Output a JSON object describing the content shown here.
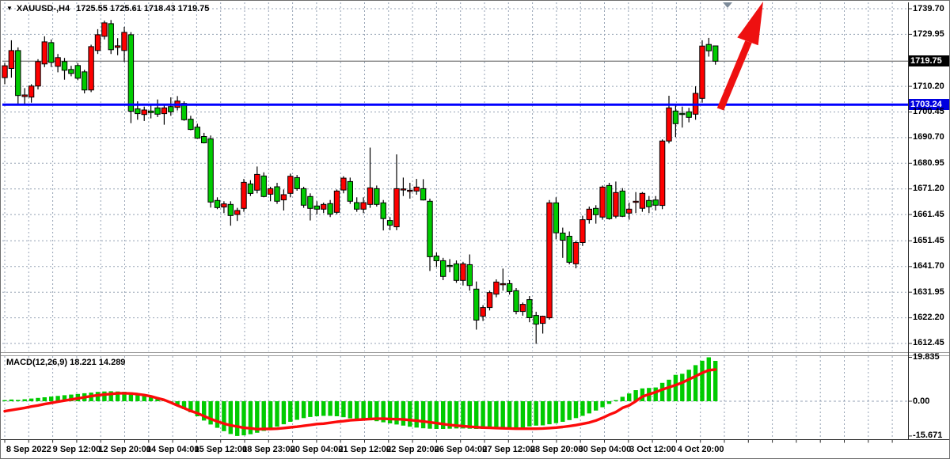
{
  "header": {
    "dropdown_icon": "▼",
    "symbol_period": "XAUUSD-,H4",
    "ohlc_line": "1725.55 1725.61 1718.43 1719.75"
  },
  "macd_header": {
    "text": "MACD(12,26,9) 18.221 14.289",
    "indicator": "MACD",
    "params": "12,26,9",
    "main_value": "18.221",
    "signal_value": "14.289"
  },
  "price_axis": {
    "current_badge": "1719.75",
    "hline_badge": "1703.24",
    "labels": [
      "1739.70",
      "1729.95",
      "1710.20",
      "1700.45",
      "1690.70",
      "1680.95",
      "1671.20",
      "1661.45",
      "1651.45",
      "1641.70",
      "1631.95",
      "1622.20",
      "1612.45"
    ],
    "label_values": [
      1739.7,
      1729.95,
      1710.2,
      1700.45,
      1690.7,
      1680.95,
      1671.2,
      1661.45,
      1651.45,
      1641.7,
      1631.95,
      1622.2,
      1612.45
    ]
  },
  "macd_axis": {
    "labels": [
      "19.835",
      "0.00",
      "-15.671"
    ],
    "label_values": [
      19.835,
      0,
      -15.671
    ]
  },
  "time_axis": {
    "labels": [
      "8 Sep 2022",
      "9 Sep 12:00",
      "12 Sep 20:00",
      "14 Sep 04:00",
      "15 Sep 12:00",
      "18 Sep 23:00",
      "20 Sep 04:00",
      "21 Sep 12:00",
      "22 Sep 20:00",
      "26 Sep 04:00",
      "27 Sep 12:00",
      "28 Sep 20:00",
      "30 Sep 04:00",
      "3 Oct 12:00",
      "4 Oct 20:00"
    ]
  },
  "colors": {
    "bull": "#fe0000",
    "bear": "#00cb00",
    "wick": "#000000",
    "body_border": "#000000",
    "grid": "#95a2b4",
    "price_line": "#808080",
    "hline": "#0000ff",
    "macd_histogram": "#00cb00",
    "macd_signal": "#fc0a0a",
    "macd_zero": "#95a2b4",
    "badge_current_bg": "#000000",
    "badge_hline_bg": "#0000e0",
    "axis_line": "#2b2b2b",
    "separator": "#9a9a9a",
    "arrow": "#ee1010",
    "shift_marker": "#7d8b9a"
  },
  "chart_data": {
    "type": "candlestick",
    "symbol": "XAUUSD",
    "timeframe": "H4",
    "title": "XAUUSD-,H4 1725.55 1725.61 1718.43 1719.75",
    "current_bar": {
      "open": 1725.55,
      "high": 1725.61,
      "low": 1718.43,
      "close": 1719.75
    },
    "horizontal_line": 1703.24,
    "current_price": 1719.75,
    "y_axis": {
      "top": 1739.7,
      "bottom": 1612.45,
      "grid_step": 9.75
    },
    "x_axis_labels": [
      "8 Sep 2022",
      "9 Sep 12:00",
      "12 Sep 20:00",
      "14 Sep 04:00",
      "15 Sep 12:00",
      "18 Sep 23:00",
      "20 Sep 04:00",
      "21 Sep 12:00",
      "22 Sep 20:00",
      "26 Sep 04:00",
      "27 Sep 12:00",
      "28 Sep 20:00",
      "30 Sep 04:00",
      "3 Oct 12:00",
      "4 Oct 20:00"
    ],
    "candles": [
      [
        1713.5,
        1719.0,
        1711.0,
        1718.0
      ],
      [
        1717.0,
        1727.7,
        1713.5,
        1723.8
      ],
      [
        1723.8,
        1725.0,
        1703.5,
        1706.7
      ],
      [
        1706.3,
        1709.5,
        1703.0,
        1706.9
      ],
      [
        1706.1,
        1711.0,
        1704.0,
        1710.3
      ],
      [
        1710.3,
        1720.5,
        1709.0,
        1719.6
      ],
      [
        1718.7,
        1729.2,
        1717.5,
        1727.1
      ],
      [
        1726.8,
        1728.0,
        1717.5,
        1719.3
      ],
      [
        1717.8,
        1722.5,
        1715.5,
        1721.1
      ],
      [
        1719.6,
        1721.0,
        1712.7,
        1716.3
      ],
      [
        1716.6,
        1718.0,
        1714.0,
        1715.1
      ],
      [
        1718.1,
        1719.0,
        1712.5,
        1713.3
      ],
      [
        1715.7,
        1716.5,
        1707.5,
        1708.8
      ],
      [
        1708.8,
        1726.0,
        1708.0,
        1725.3
      ],
      [
        1723.8,
        1731.9,
        1722.5,
        1729.8
      ],
      [
        1729.2,
        1735.2,
        1728.0,
        1734.3
      ],
      [
        1734.0,
        1735.4,
        1722.5,
        1724.1
      ],
      [
        1725.0,
        1728.5,
        1722.0,
        1725.6
      ],
      [
        1723.8,
        1732.8,
        1719.5,
        1730.7
      ],
      [
        1729.8,
        1730.8,
        1696.2,
        1700.7
      ],
      [
        1701.6,
        1704.5,
        1697.5,
        1699.8
      ],
      [
        1699.5,
        1702.5,
        1697.0,
        1701.2
      ],
      [
        1700.8,
        1703.5,
        1698.0,
        1700.2
      ],
      [
        1702.0,
        1705.2,
        1698.5,
        1699.6
      ],
      [
        1699.8,
        1703.0,
        1695.6,
        1702.0
      ],
      [
        1702.5,
        1706.0,
        1699.0,
        1700.5
      ],
      [
        1702.2,
        1706.5,
        1701.0,
        1704.6
      ],
      [
        1703.7,
        1704.5,
        1697.1,
        1697.5
      ],
      [
        1697.7,
        1699.0,
        1693.5,
        1693.8
      ],
      [
        1694.7,
        1696.0,
        1690.2,
        1690.5
      ],
      [
        1691.1,
        1692.5,
        1688.5,
        1688.7
      ],
      [
        1690.2,
        1691.5,
        1664.1,
        1666.2
      ],
      [
        1666.8,
        1668.0,
        1663.5,
        1664.1
      ],
      [
        1664.3,
        1666.5,
        1662.0,
        1665.5
      ],
      [
        1665.3,
        1666.5,
        1657.2,
        1661.1
      ],
      [
        1661.5,
        1664.0,
        1659.0,
        1663.0
      ],
      [
        1663.8,
        1675.0,
        1662.5,
        1673.7
      ],
      [
        1673.1,
        1674.5,
        1668.5,
        1669.5
      ],
      [
        1670.7,
        1679.7,
        1669.5,
        1676.7
      ],
      [
        1676.1,
        1677.5,
        1668.0,
        1668.3
      ],
      [
        1669.2,
        1672.0,
        1666.5,
        1671.3
      ],
      [
        1672.0,
        1673.5,
        1665.5,
        1666.5
      ],
      [
        1667.0,
        1671.0,
        1663.0,
        1669.0
      ],
      [
        1669.5,
        1677.0,
        1668.0,
        1676.0
      ],
      [
        1675.5,
        1676.5,
        1670.5,
        1671.3
      ],
      [
        1671.3,
        1672.0,
        1664.0,
        1665.0
      ],
      [
        1668.3,
        1669.5,
        1659.2,
        1663.8
      ],
      [
        1664.7,
        1666.5,
        1661.5,
        1663.5
      ],
      [
        1663.5,
        1666.0,
        1662.0,
        1665.3
      ],
      [
        1665.6,
        1667.0,
        1660.5,
        1661.6
      ],
      [
        1662.3,
        1671.0,
        1661.5,
        1670.4
      ],
      [
        1670.8,
        1676.0,
        1669.5,
        1675.3
      ],
      [
        1674.0,
        1675.5,
        1665.5,
        1666.5
      ],
      [
        1666.0,
        1668.0,
        1662.5,
        1663.5
      ],
      [
        1663.5,
        1668.0,
        1662.0,
        1666.0
      ],
      [
        1665.3,
        1686.9,
        1664.0,
        1671.6
      ],
      [
        1671.3,
        1672.5,
        1664.5,
        1665.3
      ],
      [
        1665.9,
        1667.0,
        1655.4,
        1659.9
      ],
      [
        1659.2,
        1660.5,
        1655.5,
        1657.4
      ],
      [
        1656.8,
        1684.3,
        1655.5,
        1671.3
      ],
      [
        1671.0,
        1675.5,
        1668.5,
        1671.2
      ],
      [
        1670.7,
        1673.5,
        1667.5,
        1670.7
      ],
      [
        1670.4,
        1675.0,
        1669.0,
        1671.9
      ],
      [
        1671.3,
        1674.9,
        1666.8,
        1667.0
      ],
      [
        1666.5,
        1667.5,
        1640.0,
        1645.4
      ],
      [
        1645.7,
        1647.0,
        1641.5,
        1643.9
      ],
      [
        1643.9,
        1645.0,
        1636.5,
        1637.9
      ],
      [
        1642.1,
        1644.5,
        1639.5,
        1642.0
      ],
      [
        1642.7,
        1644.0,
        1635.5,
        1636.4
      ],
      [
        1636.4,
        1643.5,
        1634.5,
        1642.7
      ],
      [
        1642.4,
        1646.3,
        1632.5,
        1634.5
      ],
      [
        1633.1,
        1636.0,
        1617.7,
        1621.3
      ],
      [
        1622.8,
        1627.0,
        1621.0,
        1626.1
      ],
      [
        1626.1,
        1632.5,
        1625.0,
        1631.8
      ],
      [
        1631.2,
        1636.8,
        1630.0,
        1635.8
      ],
      [
        1634.8,
        1640.9,
        1632.5,
        1635.2
      ],
      [
        1635.2,
        1636.5,
        1631.0,
        1632.2
      ],
      [
        1632.5,
        1633.5,
        1623.5,
        1624.6
      ],
      [
        1624.6,
        1628.0,
        1623.0,
        1627.3
      ],
      [
        1629.1,
        1630.5,
        1620.5,
        1622.2
      ],
      [
        1623.1,
        1624.5,
        1612.3,
        1619.8
      ],
      [
        1620.1,
        1623.0,
        1616.2,
        1622.8
      ],
      [
        1622.2,
        1667.0,
        1621.5,
        1665.9
      ],
      [
        1665.9,
        1668.0,
        1652.0,
        1654.5
      ],
      [
        1654.4,
        1656.5,
        1645.0,
        1651.7
      ],
      [
        1653.2,
        1655.0,
        1642.5,
        1643.3
      ],
      [
        1642.7,
        1651.5,
        1641.0,
        1650.8
      ],
      [
        1650.8,
        1661.0,
        1649.5,
        1659.5
      ],
      [
        1659.5,
        1664.5,
        1658.0,
        1663.5
      ],
      [
        1663.8,
        1665.0,
        1658.0,
        1661.4
      ],
      [
        1660.5,
        1672.5,
        1659.5,
        1671.9
      ],
      [
        1672.5,
        1673.5,
        1659.5,
        1659.9
      ],
      [
        1660.8,
        1674.0,
        1660.0,
        1669.8
      ],
      [
        1670.4,
        1671.5,
        1660.5,
        1660.8
      ],
      [
        1662.0,
        1666.0,
        1659.5,
        1663.5
      ],
      [
        1666.5,
        1670.0,
        1662.0,
        1666.5
      ],
      [
        1663.8,
        1670.0,
        1662.5,
        1669.5
      ],
      [
        1666.8,
        1668.5,
        1662.0,
        1664.4
      ],
      [
        1667.0,
        1668.5,
        1663.0,
        1665.0
      ],
      [
        1664.9,
        1690.0,
        1663.5,
        1689.4
      ],
      [
        1689.4,
        1706.6,
        1688.5,
        1702.0
      ],
      [
        1700.8,
        1703.0,
        1690.9,
        1696.0
      ],
      [
        1699.9,
        1702.5,
        1694.5,
        1699.5
      ],
      [
        1700.5,
        1702.0,
        1696.5,
        1698.4
      ],
      [
        1699.6,
        1710.2,
        1697.5,
        1707.5
      ],
      [
        1705.6,
        1727.7,
        1704.0,
        1725.5
      ],
      [
        1726.1,
        1728.6,
        1721.5,
        1723.7
      ],
      [
        1725.55,
        1725.61,
        1718.43,
        1719.75
      ]
    ],
    "macd": {
      "params": [
        12,
        26,
        9
      ],
      "scale_max": 19.835,
      "scale_min": -15.671,
      "histogram": [
        0.5,
        0.8,
        0.6,
        0.9,
        1.2,
        1.5,
        1.8,
        2.1,
        2.4,
        2.7,
        3.0,
        3.3,
        3.6,
        3.9,
        4.2,
        4.4,
        4.5,
        4.4,
        4.3,
        4.0,
        3.4,
        2.7,
        1.9,
        1.1,
        0.4,
        -0.6,
        -2.0,
        -3.5,
        -5.0,
        -6.8,
        -8.7,
        -10.5,
        -12.0,
        -13.5,
        -14.8,
        -15.671,
        -15.4,
        -14.9,
        -14.2,
        -13.4,
        -12.5,
        -11.5,
        -10.4,
        -9.3,
        -8.4,
        -7.6,
        -7.1,
        -6.8,
        -6.6,
        -6.6,
        -6.8,
        -7.2,
        -7.7,
        -8.0,
        -8.3,
        -8.6,
        -9.0,
        -9.5,
        -10.0,
        -10.5,
        -11.0,
        -11.5,
        -11.9,
        -12.2,
        -12.4,
        -12.5,
        -12.5,
        -12.4,
        -12.3,
        -12.3,
        -12.4,
        -12.5,
        -12.5,
        -12.4,
        -12.2,
        -12.3,
        -12.5,
        -12.2,
        -11.8,
        -11.4,
        -11.0,
        -10.9,
        -10.4,
        -9.9,
        -9.3,
        -8.5,
        -7.6,
        -6.6,
        -5.5,
        -4.2,
        -2.7,
        -1.2,
        0.5,
        2.0,
        3.5,
        5.0,
        5.8,
        6.0,
        6.2,
        8.3,
        9.7,
        11.9,
        12.4,
        14.2,
        16.3,
        18.3,
        19.835,
        18.221
      ],
      "signal": [
        -4.5,
        -4.0,
        -3.5,
        -3.0,
        -2.4,
        -1.9,
        -1.3,
        -0.8,
        -0.2,
        0.3,
        0.8,
        1.3,
        1.8,
        2.3,
        2.7,
        3.0,
        3.3,
        3.6,
        3.6,
        3.5,
        3.2,
        2.8,
        2.2,
        1.4,
        0.6,
        -0.6,
        -1.9,
        -3.1,
        -4.4,
        -5.4,
        -6.7,
        -8.0,
        -9.1,
        -10.1,
        -10.9,
        -11.4,
        -12.0,
        -12.2,
        -12.6,
        -12.5,
        -12.5,
        -12.4,
        -12.1,
        -11.8,
        -11.5,
        -11.1,
        -10.7,
        -10.3,
        -10.1,
        -9.7,
        -9.3,
        -9.0,
        -8.6,
        -8.4,
        -8.2,
        -8.0,
        -7.9,
        -7.9,
        -8.0,
        -8.1,
        -8.2,
        -8.5,
        -8.8,
        -9.1,
        -9.5,
        -9.9,
        -10.3,
        -10.7,
        -11.0,
        -11.2,
        -11.5,
        -11.7,
        -11.9,
        -12.0,
        -12.1,
        -12.2,
        -12.3,
        -12.4,
        -12.4,
        -12.4,
        -12.4,
        -12.3,
        -12.1,
        -11.9,
        -11.6,
        -11.2,
        -10.8,
        -10.2,
        -9.6,
        -8.7,
        -7.5,
        -6.1,
        -4.9,
        -3.0,
        -1.9,
        0.0,
        2.1,
        3.1,
        4.1,
        5.3,
        6.3,
        7.3,
        8.4,
        9.9,
        11.3,
        12.8,
        14.0,
        14.289
      ]
    },
    "annotations": [
      {
        "kind": "horizontal-line",
        "price": 1703.24,
        "color": "#0000ff"
      },
      {
        "kind": "arrow",
        "direction": "up-right",
        "color": "#ee1010",
        "from_price_x": 908,
        "note": "large red bullish arrow from the blue line toward top"
      }
    ]
  }
}
